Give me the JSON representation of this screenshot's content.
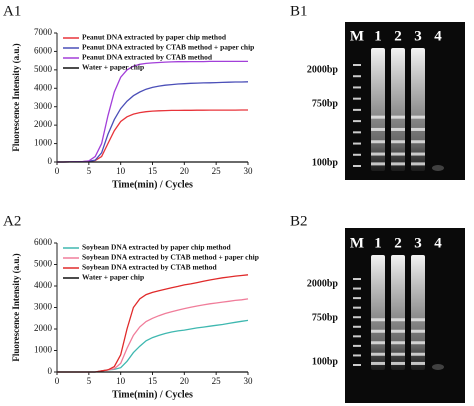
{
  "chart_data": [
    {
      "type": "line",
      "panel": "A1",
      "ylabel": "Fluorescence Intensity  (a.u.)",
      "xlabel": "Time(min) / Cycles",
      "x": [
        0,
        1,
        2,
        3,
        4,
        5,
        6,
        7,
        8,
        9,
        10,
        11,
        12,
        13,
        14,
        15,
        16,
        17,
        18,
        19,
        20,
        21,
        22,
        23,
        24,
        25,
        26,
        27,
        28,
        29,
        30
      ],
      "xlim": [
        0,
        30
      ],
      "xticks": [
        0,
        5,
        10,
        15,
        20,
        25,
        30
      ],
      "ylim": [
        0,
        7000
      ],
      "yticks": [
        0,
        1000,
        2000,
        3000,
        4000,
        5000,
        6000,
        7000
      ],
      "series": [
        {
          "name": "Peanut DNA extracted by paper chip method",
          "color": "#e8343a",
          "values": [
            0,
            0,
            5,
            10,
            20,
            40,
            80,
            300,
            1000,
            1700,
            2200,
            2450,
            2600,
            2680,
            2730,
            2760,
            2780,
            2790,
            2800,
            2800,
            2805,
            2808,
            2810,
            2812,
            2814,
            2815,
            2816,
            2817,
            2818,
            2819,
            2820
          ]
        },
        {
          "name": "Peanut DNA extracted by CTAB method + paper chip",
          "color": "#4b4fb8",
          "values": [
            0,
            0,
            5,
            10,
            20,
            40,
            100,
            500,
            1500,
            2300,
            2900,
            3300,
            3600,
            3800,
            3950,
            4050,
            4120,
            4170,
            4200,
            4230,
            4250,
            4270,
            4280,
            4290,
            4300,
            4310,
            4320,
            4330,
            4340,
            4340,
            4350
          ]
        },
        {
          "name": "Peanut DNA extracted by CTAB method",
          "color": "#a23fd9",
          "values": [
            0,
            0,
            5,
            10,
            20,
            60,
            300,
            1000,
            2500,
            3800,
            4600,
            5000,
            5200,
            5300,
            5350,
            5380,
            5400,
            5420,
            5430,
            5440,
            5440,
            5450,
            5450,
            5450,
            5460,
            5460,
            5460,
            5460,
            5460,
            5460,
            5460
          ]
        },
        {
          "name": "Water + paper chip",
          "color": "#111111",
          "values": [
            0,
            0,
            0,
            0,
            0,
            0,
            0,
            0,
            0,
            0,
            0,
            0,
            0,
            0,
            0,
            0,
            0,
            0,
            0,
            0,
            0,
            0,
            0,
            0,
            0,
            0,
            0,
            0,
            0,
            0,
            0
          ]
        }
      ]
    },
    {
      "type": "line",
      "panel": "A2",
      "ylabel": "Fluorescence Intensity  (a.u.)",
      "xlabel": "Time(min) / Cycles",
      "x": [
        0,
        1,
        2,
        3,
        4,
        5,
        6,
        7,
        8,
        9,
        10,
        11,
        12,
        13,
        14,
        15,
        16,
        17,
        18,
        19,
        20,
        21,
        22,
        23,
        24,
        25,
        26,
        27,
        28,
        29,
        30
      ],
      "xlim": [
        0,
        30
      ],
      "xticks": [
        0,
        5,
        10,
        15,
        20,
        25,
        30
      ],
      "ylim": [
        0,
        6000
      ],
      "yticks": [
        0,
        1000,
        2000,
        3000,
        4000,
        5000,
        6000
      ],
      "series": [
        {
          "name": "Soybean DNA extracted by paper chip method",
          "color": "#3fb8b0",
          "values": [
            0,
            0,
            0,
            0,
            0,
            0,
            0,
            50,
            100,
            120,
            200,
            500,
            900,
            1200,
            1450,
            1600,
            1700,
            1790,
            1860,
            1910,
            1950,
            2000,
            2050,
            2090,
            2130,
            2170,
            2210,
            2260,
            2310,
            2360,
            2400
          ]
        },
        {
          "name": "Soybean DNA extracted by CTAB method + paper chip",
          "color": "#f07d9a",
          "values": [
            0,
            0,
            0,
            0,
            0,
            0,
            0,
            50,
            100,
            150,
            400,
            1100,
            1700,
            2100,
            2350,
            2500,
            2620,
            2720,
            2800,
            2880,
            2950,
            3010,
            3070,
            3120,
            3170,
            3210,
            3250,
            3290,
            3330,
            3360,
            3400
          ]
        },
        {
          "name": "Soybean DNA extracted by CTAB method",
          "color": "#e02a2a",
          "values": [
            0,
            0,
            0,
            0,
            0,
            0,
            0,
            50,
            100,
            250,
            800,
            2000,
            3000,
            3400,
            3600,
            3700,
            3780,
            3850,
            3920,
            3980,
            4050,
            4100,
            4160,
            4220,
            4280,
            4330,
            4380,
            4420,
            4460,
            4490,
            4520
          ]
        },
        {
          "name": "Water + paper chip",
          "color": "#111111",
          "values": [
            0,
            0,
            0,
            0,
            0,
            0,
            0,
            0,
            0,
            0,
            0,
            0,
            0,
            0,
            0,
            0,
            0,
            0,
            0,
            0,
            0,
            0,
            0,
            0,
            0,
            0,
            0,
            0,
            0,
            0,
            0
          ]
        }
      ]
    }
  ],
  "gels": [
    {
      "panel": "B1",
      "lanes": [
        "M",
        "1",
        "2",
        "3",
        "4"
      ],
      "markers": [
        "2000bp",
        "750bp",
        "100bp"
      ]
    },
    {
      "panel": "B2",
      "lanes": [
        "M",
        "1",
        "2",
        "3",
        "4"
      ],
      "markers": [
        "2000bp",
        "750bp",
        "100bp"
      ]
    }
  ]
}
